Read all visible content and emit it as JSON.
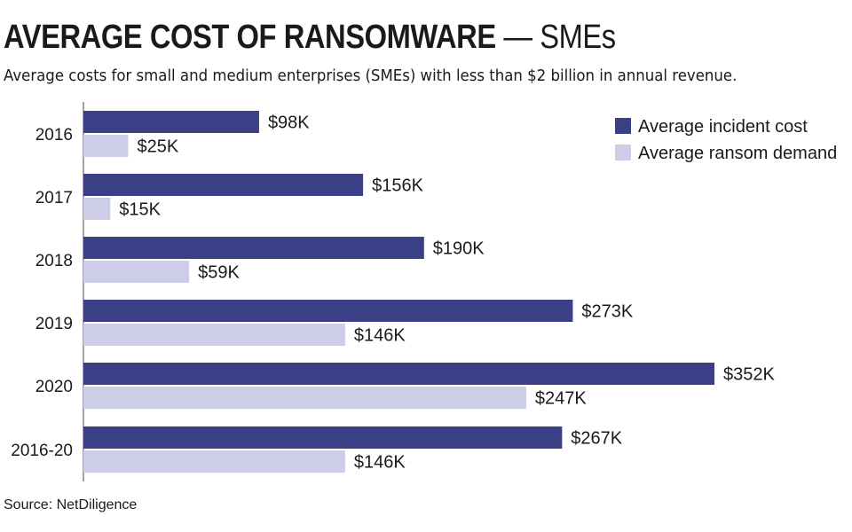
{
  "header": {
    "title_main": "AVERAGE COST OF RANSOMWARE",
    "title_sep": " — ",
    "title_suffix": "SMEs",
    "subtitle": "Average costs for small and medium enterprises (SMEs) with less than $2 billion in annual revenue."
  },
  "footer": {
    "source": "Source: NetDiligence"
  },
  "chart_data": {
    "type": "bar",
    "orientation": "horizontal",
    "categories": [
      "2016",
      "2017",
      "2018",
      "2019",
      "2020",
      "2016-20"
    ],
    "series": [
      {
        "name": "Average incident cost",
        "color": "#3b3f86",
        "values": [
          98,
          156,
          190,
          273,
          352,
          267
        ],
        "labels": [
          "$98K",
          "$156K",
          "$190K",
          "$273K",
          "$352K",
          "$267K"
        ]
      },
      {
        "name": "Average ransom demand",
        "color": "#cdcde8",
        "values": [
          25,
          15,
          59,
          146,
          247,
          146
        ],
        "labels": [
          "$25K",
          "$15K",
          "$59K",
          "$146K",
          "$247K",
          "$146K"
        ]
      }
    ],
    "xlim": [
      0,
      352
    ],
    "grid": false,
    "legend_position": "top-right"
  }
}
